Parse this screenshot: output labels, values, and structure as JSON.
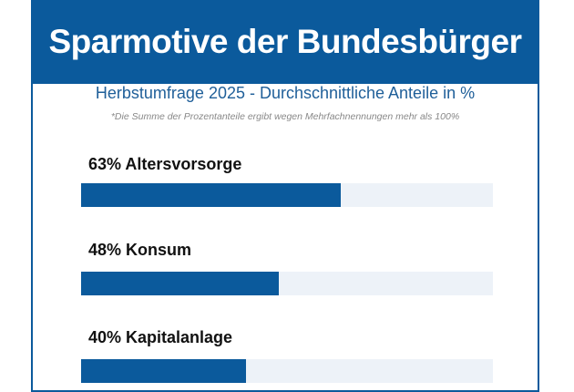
{
  "chart_data": {
    "type": "bar",
    "orientation": "horizontal",
    "title": "Sparmotive der Bundesbürger",
    "subtitle": "Herbstumfrage 2025 - Durchschnittliche Anteile in %",
    "note": "*Die Summe der Prozentanteile ergibt wegen Mehrfachnennungen mehr als 100%",
    "xlim": [
      0,
      100
    ],
    "grid": false,
    "colors": {
      "bar": "#0b5a9c",
      "track": "#edf2f8"
    },
    "items": [
      {
        "label": "63% Altersvorsorge",
        "category": "Altersvorsorge",
        "value": 63
      },
      {
        "label": "48% Konsum",
        "category": "Konsum",
        "value": 48
      },
      {
        "label": "40% Kapitalanlage",
        "category": "Kapitalanlage",
        "value": 40
      }
    ]
  }
}
